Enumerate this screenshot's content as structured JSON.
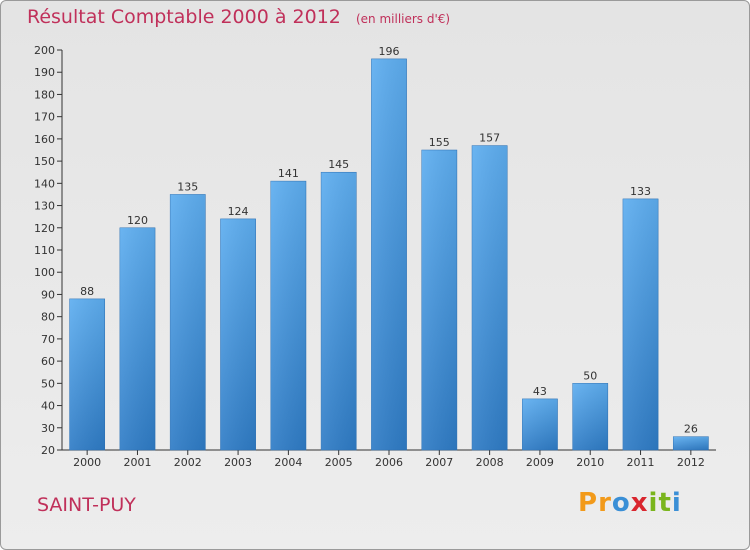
{
  "chart_data": {
    "type": "bar",
    "title": "Résultat Comptable 2000 à 2012",
    "subtitle": "(en milliers d'€)",
    "categories": [
      "2000",
      "2001",
      "2002",
      "2003",
      "2004",
      "2005",
      "2006",
      "2007",
      "2008",
      "2009",
      "2010",
      "2011",
      "2012"
    ],
    "values": [
      88,
      120,
      135,
      124,
      141,
      145,
      196,
      155,
      157,
      43,
      50,
      133,
      26
    ],
    "xlabel": "",
    "ylabel": "",
    "ylim": [
      20,
      200
    ],
    "yticks": [
      20,
      30,
      40,
      50,
      60,
      70,
      80,
      90,
      100,
      110,
      120,
      130,
      140,
      150,
      160,
      170,
      180,
      190,
      200
    ],
    "grid": false,
    "bar_color": "#4f9fe0",
    "bar_color_dark": "#2f78c2"
  },
  "commune": "SAINT-PUY",
  "logo": {
    "letters": [
      "P",
      "r",
      "o",
      "x",
      "i",
      "t",
      "i"
    ],
    "colors": [
      "#f29a1a",
      "#f29a1a",
      "#3a8fd6",
      "#d9262e",
      "#7ab51d",
      "#7ab51d",
      "#3a8fd6"
    ]
  },
  "colors": {
    "title": "#c0305a",
    "axis": "#333333"
  }
}
